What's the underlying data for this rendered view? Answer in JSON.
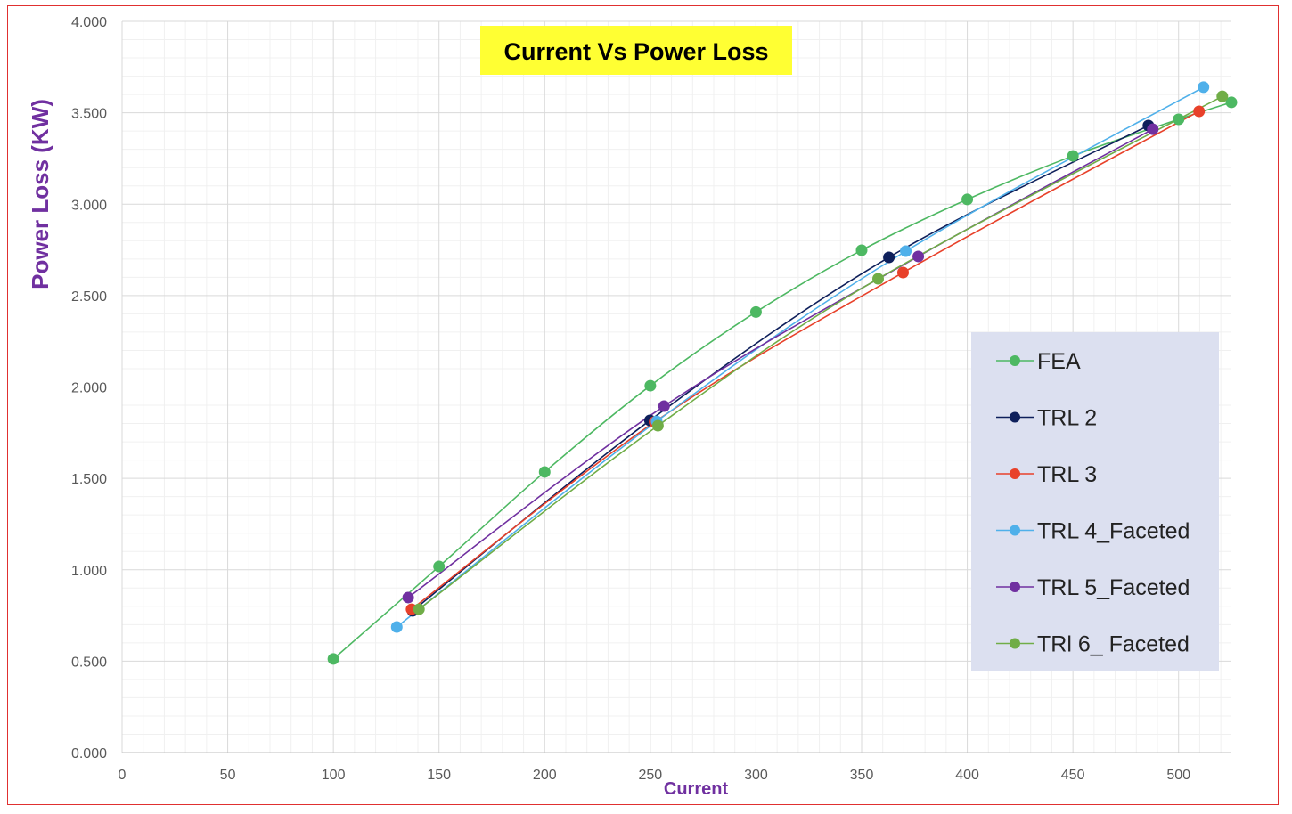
{
  "chart_data": {
    "type": "line",
    "title": "Current Vs Power Loss",
    "xlabel": "Current",
    "ylabel": "Power Loss (KW)",
    "xlim": [
      0,
      525
    ],
    "ylim": [
      0,
      4
    ],
    "xticks": [
      "0",
      "50",
      "100",
      "150",
      "200",
      "250",
      "300",
      "350",
      "400",
      "450",
      "500"
    ],
    "yticks": [
      "0.000",
      "0.500",
      "1.000",
      "1.500",
      "2.000",
      "2.500",
      "3.000",
      "3.500",
      "4.000"
    ],
    "grid": true,
    "legend_position": "right",
    "title_background": "#FFFF33",
    "axis_label_color": "#7030A0",
    "series": [
      {
        "name": "FEA",
        "color": "#4DB862",
        "x": [
          100,
          150,
          200,
          250,
          300,
          350,
          400,
          450,
          500,
          525
        ],
        "y": [
          0.512,
          1.018,
          1.535,
          2.007,
          2.41,
          2.748,
          3.026,
          3.264,
          3.464,
          3.557
        ]
      },
      {
        "name": "TRL 2",
        "color": "#0E1F5B",
        "x": [
          137.5,
          249.8,
          362.9,
          485.7
        ],
        "y": [
          0.775,
          1.817,
          2.709,
          3.43
        ]
      },
      {
        "name": "TRL 3",
        "color": "#E8412A",
        "x": [
          137,
          252,
          369.6,
          509.7
        ],
        "y": [
          0.784,
          1.808,
          2.626,
          3.508
        ]
      },
      {
        "name": "TRL 4_Faceted",
        "color": "#4FB0EA",
        "x": [
          130,
          253,
          370.9,
          511.8
        ],
        "y": [
          0.687,
          1.812,
          2.743,
          3.64
        ]
      },
      {
        "name": "TRL 5_Faceted",
        "color": "#7030A0",
        "x": [
          135.4,
          256.5,
          376.8,
          487.8
        ],
        "y": [
          0.848,
          1.895,
          2.714,
          3.41
        ]
      },
      {
        "name": "TRl 6_ Faceted",
        "color": "#70AD47",
        "x": [
          140.5,
          253.6,
          357.8,
          520.7
        ],
        "y": [
          0.784,
          1.788,
          2.592,
          3.59
        ]
      }
    ]
  }
}
